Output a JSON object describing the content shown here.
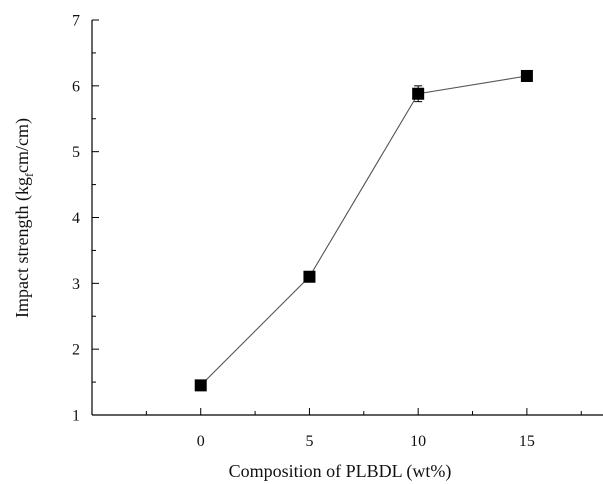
{
  "chart_data": {
    "type": "line",
    "xlabel": "Composition of PLBDL (wt%)",
    "ylabel": {
      "main": "Impact strength (kg",
      "subscript": "f",
      "tail": "cm/cm)"
    },
    "x": [
      0,
      5,
      10,
      15
    ],
    "series": [
      {
        "values": [
          1.45,
          3.1,
          5.88,
          6.15
        ],
        "errors": [
          0.05,
          0.06,
          0.12,
          0.08
        ]
      }
    ],
    "xlim": [
      -5,
      18.5
    ],
    "ylim": [
      1,
      7
    ],
    "xticks": [
      "0",
      "5",
      "10",
      "15"
    ],
    "yticks": [
      "1",
      "2",
      "3",
      "4",
      "5",
      "6",
      "7"
    ],
    "grid": false,
    "legend": "none",
    "marker": "filled-square",
    "colors": {
      "line": "#555555",
      "marker": "#000000",
      "axis": "#000000"
    }
  }
}
